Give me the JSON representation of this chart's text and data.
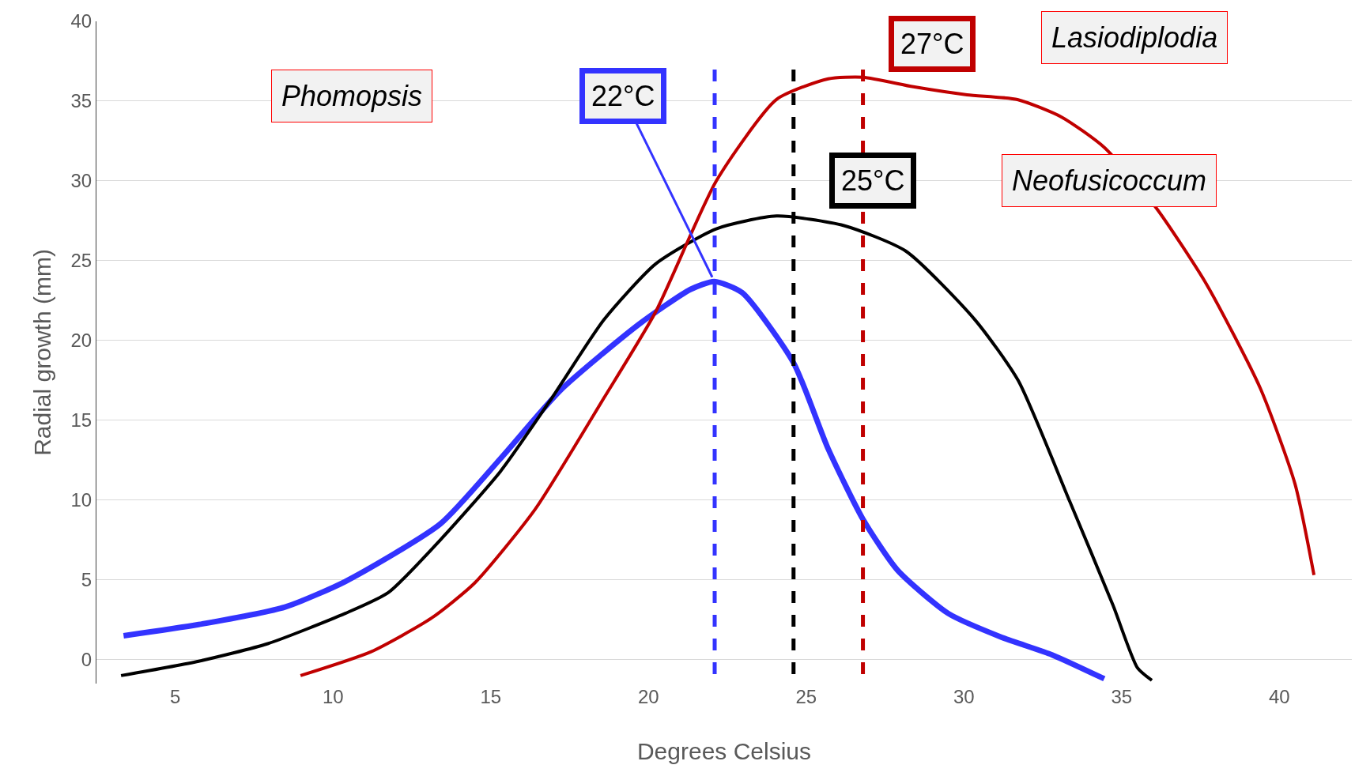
{
  "chart_data": {
    "type": "line",
    "xlabel": "Degrees Celsius",
    "ylabel": "Radial growth (mm)",
    "xlim": [
      2.5,
      42.3
    ],
    "xticks": [
      5,
      10,
      15,
      20,
      25,
      30,
      35,
      40
    ],
    "ylim": [
      -1.5,
      40
    ],
    "yticks": [
      0,
      5,
      10,
      15,
      20,
      25,
      30,
      35,
      40
    ],
    "grid": "y",
    "legend": false,
    "marker": "none",
    "line_style": "solid",
    "series": [
      {
        "color": "#3333ff",
        "x": [
          3.36,
          5.74,
          8.48,
          10.39,
          13.4,
          15.31,
          17.22,
          19.69,
          21.33,
          22.09,
          22.97,
          24.6,
          25.7,
          26.8,
          27.9,
          29.5,
          31.2,
          32.8,
          34.45
        ],
        "values": [
          1.5,
          2.2,
          3.3,
          4.9,
          8.5,
          12.6,
          16.9,
          21.0,
          23.2,
          23.7,
          23.0,
          18.6,
          13.2,
          8.8,
          5.6,
          2.9,
          1.4,
          0.3,
          -1.2
        ]
      },
      {
        "color": "#000000",
        "x": [
          3.28,
          5.74,
          7.93,
          10.39,
          11.75,
          13.4,
          15.31,
          16.94,
          18.59,
          20.23,
          22.15,
          24.06,
          26.2,
          28.16,
          30.35,
          31.72,
          33.36,
          34.73,
          35.5,
          35.96
        ],
        "values": [
          -1.0,
          -0.1,
          1.0,
          2.9,
          4.2,
          7.5,
          11.8,
          16.4,
          21.3,
          24.8,
          27.0,
          27.8,
          27.2,
          25.6,
          21.3,
          17.5,
          9.9,
          3.4,
          -0.5,
          -1.3
        ]
      },
      {
        "color": "#c00000",
        "x": [
          8.97,
          11.21,
          13.12,
          14.49,
          16.4,
          18.59,
          20.23,
          22.15,
          24.06,
          25.7,
          26.8,
          28.4,
          30.1,
          31.7,
          33.1,
          34.45,
          36.1,
          37.7,
          39.4,
          40.5,
          41.1
        ],
        "values": [
          -1.0,
          0.5,
          2.6,
          4.8,
          9.4,
          16.4,
          21.8,
          30.0,
          35.1,
          36.4,
          36.5,
          35.9,
          35.4,
          35.1,
          34.0,
          32.1,
          28.3,
          23.5,
          17.0,
          11.0,
          5.3
        ]
      }
    ],
    "annotations": [
      "Phomopsis",
      "Neofusicoccum",
      "Lasiodiplodia"
    ],
    "ref_lines": [
      {
        "axis": "x",
        "value": 22.1,
        "label": "22°C",
        "color": "#3333ff",
        "line_style": "dashed"
      },
      {
        "axis": "x",
        "value": 24.6,
        "label": "25°C",
        "color": "#000000",
        "line_style": "dashed"
      },
      {
        "axis": "x",
        "value": 26.8,
        "label": "27°C",
        "color": "#c00000",
        "line_style": "dashed"
      }
    ]
  }
}
